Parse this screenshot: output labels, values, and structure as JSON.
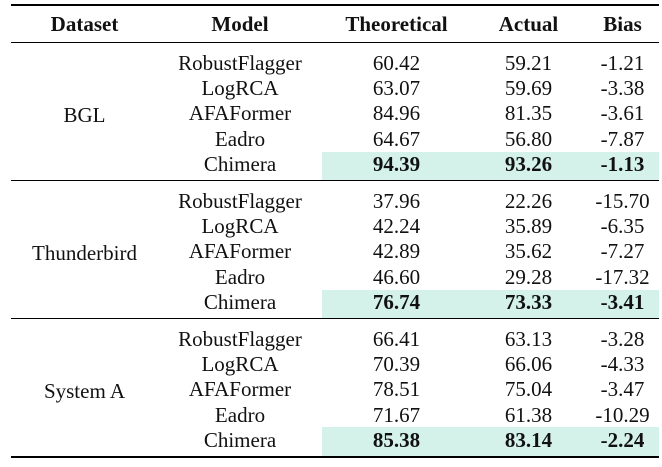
{
  "headers": {
    "dataset": "Dataset",
    "model": "Model",
    "theoretical": "Theoretical",
    "actual": "Actual",
    "bias": "Bias"
  },
  "highlight_color": "#d4f1ea",
  "groups": [
    {
      "dataset": "BGL",
      "rows": [
        {
          "model": "RobustFlagger",
          "theoretical": "60.42",
          "actual": "59.21",
          "bias": "-1.21"
        },
        {
          "model": "LogRCA",
          "theoretical": "63.07",
          "actual": "59.69",
          "bias": "-3.38"
        },
        {
          "model": "AFAFormer",
          "theoretical": "84.96",
          "actual": "81.35",
          "bias": "-3.61"
        },
        {
          "model": "Eadro",
          "theoretical": "64.67",
          "actual": "56.80",
          "bias": "-7.87"
        },
        {
          "model": "Chimera",
          "theoretical": "94.39",
          "actual": "93.26",
          "bias": "-1.13"
        }
      ]
    },
    {
      "dataset": "Thunderbird",
      "rows": [
        {
          "model": "RobustFlagger",
          "theoretical": "37.96",
          "actual": "22.26",
          "bias": "-15.70"
        },
        {
          "model": "LogRCA",
          "theoretical": "42.24",
          "actual": "35.89",
          "bias": "-6.35"
        },
        {
          "model": "AFAFormer",
          "theoretical": "42.89",
          "actual": "35.62",
          "bias": "-7.27"
        },
        {
          "model": "Eadro",
          "theoretical": "46.60",
          "actual": "29.28",
          "bias": "-17.32"
        },
        {
          "model": "Chimera",
          "theoretical": "76.74",
          "actual": "73.33",
          "bias": "-3.41"
        }
      ]
    },
    {
      "dataset": "System A",
      "rows": [
        {
          "model": "RobustFlagger",
          "theoretical": "66.41",
          "actual": "63.13",
          "bias": "-3.28"
        },
        {
          "model": "LogRCA",
          "theoretical": "70.39",
          "actual": "66.06",
          "bias": "-4.33"
        },
        {
          "model": "AFAFormer",
          "theoretical": "78.51",
          "actual": "75.04",
          "bias": "-3.47"
        },
        {
          "model": "Eadro",
          "theoretical": "71.67",
          "actual": "61.38",
          "bias": "-10.29"
        },
        {
          "model": "Chimera",
          "theoretical": "85.38",
          "actual": "83.14",
          "bias": "-2.24"
        }
      ]
    }
  ]
}
